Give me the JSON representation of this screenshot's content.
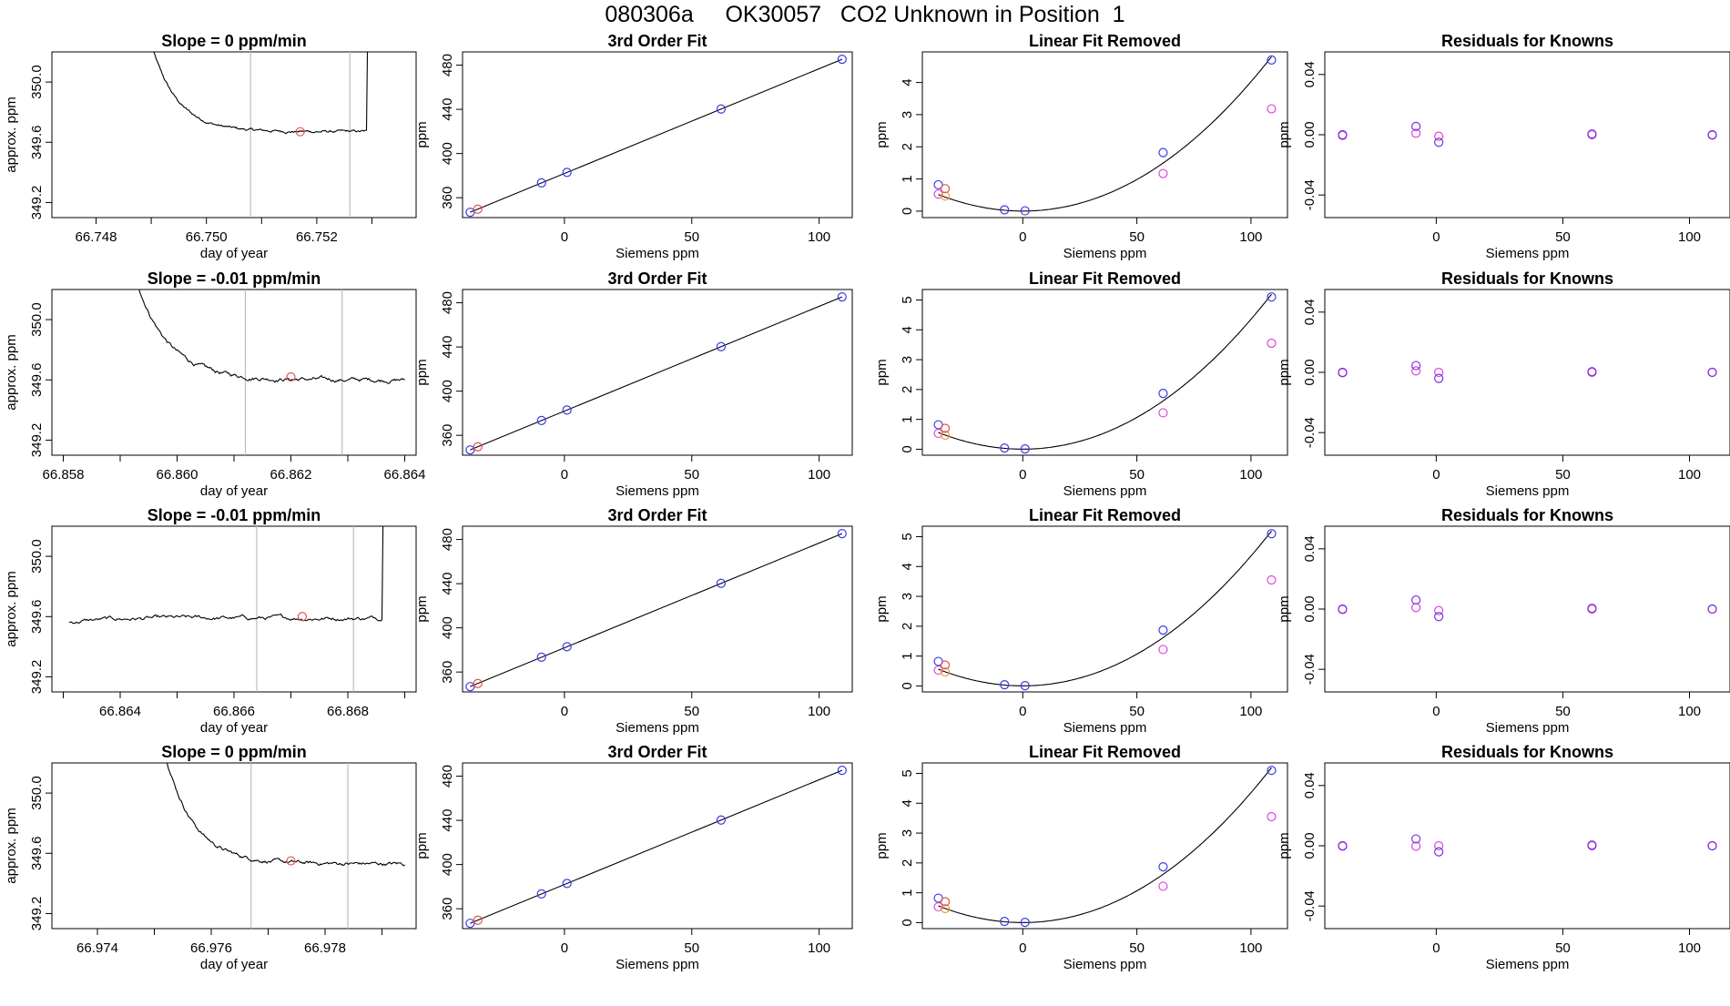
{
  "figure": {
    "title": "080306a     OK30057   CO2 Unknown in Position  1"
  },
  "colors": {
    "trace": "#000000",
    "marker_red": "#e8504a",
    "marker_blue": "#3a3aee",
    "marker_magenta": "#dd44dd",
    "marker_orange": "#f09a30",
    "marker_purple": "#7733dd",
    "window_line": "#bdbdbd"
  },
  "chart_data": [
    {
      "row": 1,
      "panel": "timeseries",
      "type": "line",
      "title": "Slope =  0  ppm/min",
      "xlabel": "day of year",
      "ylabel": "approx. ppm",
      "xlim": [
        66.7472,
        66.7538
      ],
      "ylim": [
        349.1,
        350.2
      ],
      "xticks": [
        66.748,
        66.749,
        66.75,
        66.751,
        66.752,
        66.753
      ],
      "xticklabels": [
        "66.748",
        "",
        "66.750",
        "",
        "66.752",
        ""
      ],
      "yticks": [
        349.2,
        349.6,
        350.0
      ],
      "yticklabels": [
        "349.2",
        "349.6",
        "350.0"
      ],
      "window": [
        66.7508,
        66.7526
      ],
      "trace": {
        "x0": 66.749,
        "x1": 66.7529,
        "shape": "decay",
        "level": 349.67,
        "start": 350.25,
        "tau": 0.12,
        "noise": 0.005,
        "end_spike": true
      },
      "marker": {
        "x": 66.7517,
        "y": 349.67
      }
    },
    {
      "row": 1,
      "panel": "fit",
      "type": "scatter",
      "title": "3rd Order Fit",
      "xlabel": "Siemens ppm",
      "ylabel": "ppm",
      "xlim": [
        -40,
        113
      ],
      "ylim": [
        342,
        492
      ],
      "xticks": [
        0,
        50,
        100
      ],
      "xticklabels": [
        "0",
        "50",
        "100"
      ],
      "yticks": [
        360,
        400,
        440,
        480
      ],
      "yticklabels": [
        "360",
        "400",
        "440",
        "480"
      ],
      "line": [
        [
          -37,
          346.8
        ],
        [
          109,
          485.3
        ]
      ],
      "points_blue": [
        [
          -37,
          346.8
        ],
        [
          -9,
          373.4
        ],
        [
          1,
          382.9
        ],
        [
          61.5,
          440.3
        ],
        [
          109,
          485.3
        ]
      ],
      "points_red": [
        [
          -34,
          349.6
        ]
      ]
    },
    {
      "row": 1,
      "panel": "linear_removed",
      "type": "scatter",
      "title": "Linear Fit Removed",
      "xlabel": "Siemens ppm",
      "ylabel": "ppm",
      "xlim": [
        -44,
        116
      ],
      "ylim": [
        -0.2,
        4.95
      ],
      "xticks": [
        0,
        50,
        100
      ],
      "xticklabels": [
        "0",
        "50",
        "100"
      ],
      "yticks": [
        0,
        1,
        2,
        3,
        4
      ],
      "yticklabels": [
        "0",
        "1",
        "2",
        "3",
        "4"
      ],
      "curve": {
        "x0": -37,
        "x1": 109,
        "a": 0.000382,
        "b": 0,
        "c": 0.003,
        "k": 2e-07
      },
      "points_blue": [
        [
          -37,
          0.82
        ],
        [
          -8,
          0.04
        ],
        [
          1,
          0.01
        ],
        [
          61.5,
          1.82
        ],
        [
          109,
          4.7
        ]
      ],
      "points_magenta": [
        [
          -37,
          0.53
        ],
        [
          109,
          3.18
        ],
        [
          61.5,
          1.17
        ]
      ],
      "points_red": [
        [
          -34,
          0.7
        ]
      ],
      "points_orange": [
        [
          -34,
          0.47
        ]
      ]
    },
    {
      "row": 1,
      "panel": "residuals",
      "type": "scatter",
      "title": "Residuals for Knowns",
      "xlabel": "Siemens ppm",
      "ylabel": "ppm",
      "xlim": [
        -44,
        116
      ],
      "ylim": [
        -0.055,
        0.055
      ],
      "xticks": [
        0,
        50,
        100
      ],
      "xticklabels": [
        "0",
        "50",
        "100"
      ],
      "yticks": [
        -0.04,
        0.0,
        0.04
      ],
      "yticklabels": [
        "-0.04",
        "0.00",
        "0.04"
      ],
      "points_blue": [
        [
          -37,
          0.0
        ],
        [
          -8,
          0.0055
        ],
        [
          1,
          -0.005
        ],
        [
          61.5,
          0.0005
        ],
        [
          109,
          0.0
        ]
      ],
      "points_magenta": [
        [
          -37,
          -0.0005
        ],
        [
          -8,
          0.001
        ],
        [
          1,
          -0.001
        ],
        [
          61.5,
          0.0
        ],
        [
          109,
          -0.0003
        ]
      ]
    },
    {
      "row": 2,
      "panel": "timeseries",
      "type": "line",
      "title": "Slope =  -0.01  ppm/min",
      "xlabel": "day of year",
      "ylabel": "approx. ppm",
      "xlim": [
        66.8578,
        66.8642
      ],
      "ylim": [
        349.1,
        350.2
      ],
      "xticks": [
        66.858,
        66.859,
        66.86,
        66.861,
        66.862,
        66.863,
        66.864
      ],
      "xticklabels": [
        "66.858",
        "",
        "66.860",
        "",
        "66.862",
        "",
        "66.864"
      ],
      "yticks": [
        349.2,
        349.6,
        350.0
      ],
      "yticklabels": [
        "349.2",
        "349.6",
        "350.0"
      ],
      "window": [
        66.8612,
        66.8629
      ],
      "trace": {
        "x0": 66.8593,
        "x1": 66.864,
        "shape": "decay",
        "level": 349.6,
        "start": 350.25,
        "tau": 0.12,
        "noise": 0.008,
        "end_spike": false
      },
      "marker": {
        "x": 66.862,
        "y": 349.62
      }
    },
    {
      "row": 2,
      "panel": "fit",
      "type": "scatter",
      "title": "3rd Order Fit",
      "xlabel": "Siemens ppm",
      "ylabel": "ppm",
      "xlim": [
        -40,
        113
      ],
      "ylim": [
        342,
        492
      ],
      "xticks": [
        0,
        50,
        100
      ],
      "xticklabels": [
        "0",
        "50",
        "100"
      ],
      "yticks": [
        360,
        400,
        440,
        480
      ],
      "yticklabels": [
        "360",
        "400",
        "440",
        "480"
      ],
      "line": [
        [
          -37,
          346.8
        ],
        [
          109,
          485.3
        ]
      ],
      "points_blue": [
        [
          -37,
          346.8
        ],
        [
          -9,
          373.4
        ],
        [
          1,
          382.9
        ],
        [
          61.5,
          440.3
        ],
        [
          109,
          485.3
        ]
      ],
      "points_red": [
        [
          -34,
          349.6
        ]
      ]
    },
    {
      "row": 2,
      "panel": "linear_removed",
      "type": "scatter",
      "title": "Linear Fit Removed",
      "xlabel": "Siemens ppm",
      "ylabel": "ppm",
      "xlim": [
        -44,
        116
      ],
      "ylim": [
        -0.2,
        5.35
      ],
      "xticks": [
        0,
        50,
        100
      ],
      "xticklabels": [
        "0",
        "50",
        "100"
      ],
      "yticks": [
        0,
        1,
        2,
        3,
        4,
        5
      ],
      "yticklabels": [
        "0",
        "1",
        "2",
        "3",
        "4",
        "5"
      ],
      "curve": {
        "x0": -37,
        "x1": 109,
        "a": 0.000415,
        "b": 0,
        "c": 0.003,
        "k": 2e-07
      },
      "points_blue": [
        [
          -37,
          0.82
        ],
        [
          -8,
          0.04
        ],
        [
          1,
          0.01
        ],
        [
          61.5,
          1.87
        ],
        [
          109,
          5.1
        ]
      ],
      "points_magenta": [
        [
          -37,
          0.53
        ],
        [
          109,
          3.55
        ],
        [
          61.5,
          1.22
        ]
      ],
      "points_red": [
        [
          -34,
          0.7
        ]
      ],
      "points_orange": [
        [
          -34,
          0.47
        ]
      ]
    },
    {
      "row": 2,
      "panel": "residuals",
      "type": "scatter",
      "title": "Residuals for Knowns",
      "xlabel": "Siemens ppm",
      "ylabel": "ppm",
      "xlim": [
        -44,
        116
      ],
      "ylim": [
        -0.055,
        0.055
      ],
      "xticks": [
        0,
        50,
        100
      ],
      "xticklabels": [
        "0",
        "50",
        "100"
      ],
      "yticks": [
        -0.04,
        0.0,
        0.04
      ],
      "yticklabels": [
        "-0.04",
        "0.00",
        "0.04"
      ],
      "points_blue": [
        [
          -37,
          0.0
        ],
        [
          -8,
          0.0045
        ],
        [
          1,
          -0.004
        ],
        [
          61.5,
          0.0005
        ],
        [
          109,
          0.0
        ]
      ],
      "points_magenta": [
        [
          -37,
          -0.0003
        ],
        [
          -8,
          0.001
        ],
        [
          1,
          0.0
        ],
        [
          61.5,
          0.0
        ],
        [
          109,
          0.0
        ]
      ]
    },
    {
      "row": 3,
      "panel": "timeseries",
      "type": "line",
      "title": "Slope =  -0.01  ppm/min",
      "xlabel": "day of year",
      "ylabel": "approx. ppm",
      "xlim": [
        66.8628,
        66.8692
      ],
      "ylim": [
        349.1,
        350.2
      ],
      "xticks": [
        66.863,
        66.864,
        66.865,
        66.866,
        66.867,
        66.868,
        66.869
      ],
      "xticklabels": [
        "",
        "66.864",
        "",
        "66.866",
        "",
        "66.868",
        ""
      ],
      "yticks": [
        349.2,
        349.6,
        350.0
      ],
      "yticklabels": [
        "349.2",
        "349.6",
        "350.0"
      ],
      "window": [
        66.8664,
        66.8681
      ],
      "trace": {
        "x0": 66.8631,
        "x1": 66.8686,
        "shape": "flat",
        "level": 349.59,
        "start": 349.56,
        "tau": 0.1,
        "noise": 0.008,
        "end_spike": true
      },
      "marker": {
        "x": 66.8672,
        "y": 349.6
      }
    },
    {
      "row": 3,
      "panel": "fit",
      "type": "scatter",
      "title": "3rd Order Fit",
      "xlabel": "Siemens ppm",
      "ylabel": "ppm",
      "xlim": [
        -40,
        113
      ],
      "ylim": [
        342,
        492
      ],
      "xticks": [
        0,
        50,
        100
      ],
      "xticklabels": [
        "0",
        "50",
        "100"
      ],
      "yticks": [
        360,
        400,
        440,
        480
      ],
      "yticklabels": [
        "360",
        "400",
        "440",
        "480"
      ],
      "line": [
        [
          -37,
          346.8
        ],
        [
          109,
          485.3
        ]
      ],
      "points_blue": [
        [
          -37,
          346.8
        ],
        [
          -9,
          373.4
        ],
        [
          1,
          382.9
        ],
        [
          61.5,
          440.3
        ],
        [
          109,
          485.3
        ]
      ],
      "points_red": [
        [
          -34,
          349.6
        ]
      ]
    },
    {
      "row": 3,
      "panel": "linear_removed",
      "type": "scatter",
      "title": "Linear Fit Removed",
      "xlabel": "Siemens ppm",
      "ylabel": "ppm",
      "xlim": [
        -44,
        116
      ],
      "ylim": [
        -0.2,
        5.35
      ],
      "xticks": [
        0,
        50,
        100
      ],
      "xticklabels": [
        "0",
        "50",
        "100"
      ],
      "yticks": [
        0,
        1,
        2,
        3,
        4,
        5
      ],
      "yticklabels": [
        "0",
        "1",
        "2",
        "3",
        "4",
        "5"
      ],
      "curve": {
        "x0": -37,
        "x1": 109,
        "a": 0.000415,
        "b": 0,
        "c": 0.003,
        "k": 2e-07
      },
      "points_blue": [
        [
          -37,
          0.82
        ],
        [
          -8,
          0.04
        ],
        [
          1,
          0.01
        ],
        [
          61.5,
          1.87
        ],
        [
          109,
          5.1
        ]
      ],
      "points_magenta": [
        [
          -37,
          0.53
        ],
        [
          109,
          3.55
        ],
        [
          61.5,
          1.22
        ]
      ],
      "points_red": [
        [
          -34,
          0.7
        ]
      ],
      "points_orange": [
        [
          -34,
          0.47
        ]
      ]
    },
    {
      "row": 3,
      "panel": "residuals",
      "type": "scatter",
      "title": "Residuals for Knowns",
      "xlabel": "Siemens ppm",
      "ylabel": "ppm",
      "xlim": [
        -44,
        116
      ],
      "ylim": [
        -0.055,
        0.055
      ],
      "xticks": [
        0,
        50,
        100
      ],
      "xticklabels": [
        "0",
        "50",
        "100"
      ],
      "yticks": [
        -0.04,
        0.0,
        0.04
      ],
      "yticklabels": [
        "-0.04",
        "0.00",
        "0.04"
      ],
      "points_blue": [
        [
          -37,
          0.0
        ],
        [
          -8,
          0.006
        ],
        [
          1,
          -0.005
        ],
        [
          61.5,
          0.0005
        ],
        [
          109,
          0.0
        ]
      ],
      "points_magenta": [
        [
          -37,
          -0.0003
        ],
        [
          -8,
          0.001
        ],
        [
          1,
          -0.001
        ],
        [
          61.5,
          0.0
        ],
        [
          109,
          0.0
        ]
      ]
    },
    {
      "row": 4,
      "panel": "timeseries",
      "type": "line",
      "title": "Slope =  0  ppm/min",
      "xlabel": "day of year",
      "ylabel": "approx. ppm",
      "xlim": [
        66.9732,
        66.9796
      ],
      "ylim": [
        349.1,
        350.2
      ],
      "xticks": [
        66.974,
        66.975,
        66.976,
        66.977,
        66.978,
        66.979
      ],
      "xticklabels": [
        "66.974",
        "",
        "66.976",
        "",
        "66.978",
        ""
      ],
      "yticks": [
        349.2,
        349.6,
        350.0
      ],
      "yticklabels": [
        "349.2",
        "349.6",
        "350.0"
      ],
      "window": [
        66.9767,
        66.9784
      ],
      "trace": {
        "x0": 66.9752,
        "x1": 66.9794,
        "shape": "decay",
        "level": 349.53,
        "start": 350.25,
        "tau": 0.12,
        "noise": 0.007,
        "end_spike": false
      },
      "marker": {
        "x": 66.9774,
        "y": 349.55
      }
    },
    {
      "row": 4,
      "panel": "fit",
      "type": "scatter",
      "title": "3rd Order Fit",
      "xlabel": "Siemens ppm",
      "ylabel": "ppm",
      "xlim": [
        -40,
        113
      ],
      "ylim": [
        342,
        492
      ],
      "xticks": [
        0,
        50,
        100
      ],
      "xticklabels": [
        "0",
        "50",
        "100"
      ],
      "yticks": [
        360,
        400,
        440,
        480
      ],
      "yticklabels": [
        "360",
        "400",
        "440",
        "480"
      ],
      "line": [
        [
          -37,
          346.8
        ],
        [
          109,
          485.3
        ]
      ],
      "points_blue": [
        [
          -37,
          346.8
        ],
        [
          -9,
          373.4
        ],
        [
          1,
          382.9
        ],
        [
          61.5,
          440.3
        ],
        [
          109,
          485.3
        ]
      ],
      "points_red": [
        [
          -34,
          349.6
        ]
      ]
    },
    {
      "row": 4,
      "panel": "linear_removed",
      "type": "scatter",
      "title": "Linear Fit Removed",
      "xlabel": "Siemens ppm",
      "ylabel": "ppm",
      "xlim": [
        -44,
        116
      ],
      "ylim": [
        -0.2,
        5.35
      ],
      "xticks": [
        0,
        50,
        100
      ],
      "xticklabels": [
        "0",
        "50",
        "100"
      ],
      "yticks": [
        0,
        1,
        2,
        3,
        4,
        5
      ],
      "yticklabels": [
        "0",
        "1",
        "2",
        "3",
        "4",
        "5"
      ],
      "curve": {
        "x0": -37,
        "x1": 109,
        "a": 0.000415,
        "b": 0,
        "c": 0.003,
        "k": 2e-07
      },
      "points_blue": [
        [
          -37,
          0.82
        ],
        [
          -8,
          0.04
        ],
        [
          1,
          0.01
        ],
        [
          61.5,
          1.87
        ],
        [
          109,
          5.1
        ]
      ],
      "points_magenta": [
        [
          -37,
          0.53
        ],
        [
          109,
          3.55
        ],
        [
          61.5,
          1.22
        ]
      ],
      "points_red": [
        [
          -34,
          0.7
        ]
      ],
      "points_orange": [
        [
          -34,
          0.47
        ]
      ]
    },
    {
      "row": 4,
      "panel": "residuals",
      "type": "scatter",
      "title": "Residuals for Knowns",
      "xlabel": "Siemens ppm",
      "ylabel": "ppm",
      "xlim": [
        -44,
        116
      ],
      "ylim": [
        -0.055,
        0.055
      ],
      "xticks": [
        0,
        50,
        100
      ],
      "xticklabels": [
        "0",
        "50",
        "100"
      ],
      "yticks": [
        -0.04,
        0.0,
        0.04
      ],
      "yticklabels": [
        "-0.04",
        "0.00",
        "0.04"
      ],
      "points_blue": [
        [
          -37,
          0.0
        ],
        [
          -8,
          0.0045
        ],
        [
          1,
          -0.004
        ],
        [
          61.5,
          0.0005
        ],
        [
          109,
          0.0
        ]
      ],
      "points_magenta": [
        [
          -37,
          -0.0003
        ],
        [
          -8,
          -0.0003
        ],
        [
          1,
          0.0
        ],
        [
          61.5,
          0.0
        ],
        [
          109,
          0.0
        ]
      ]
    }
  ]
}
